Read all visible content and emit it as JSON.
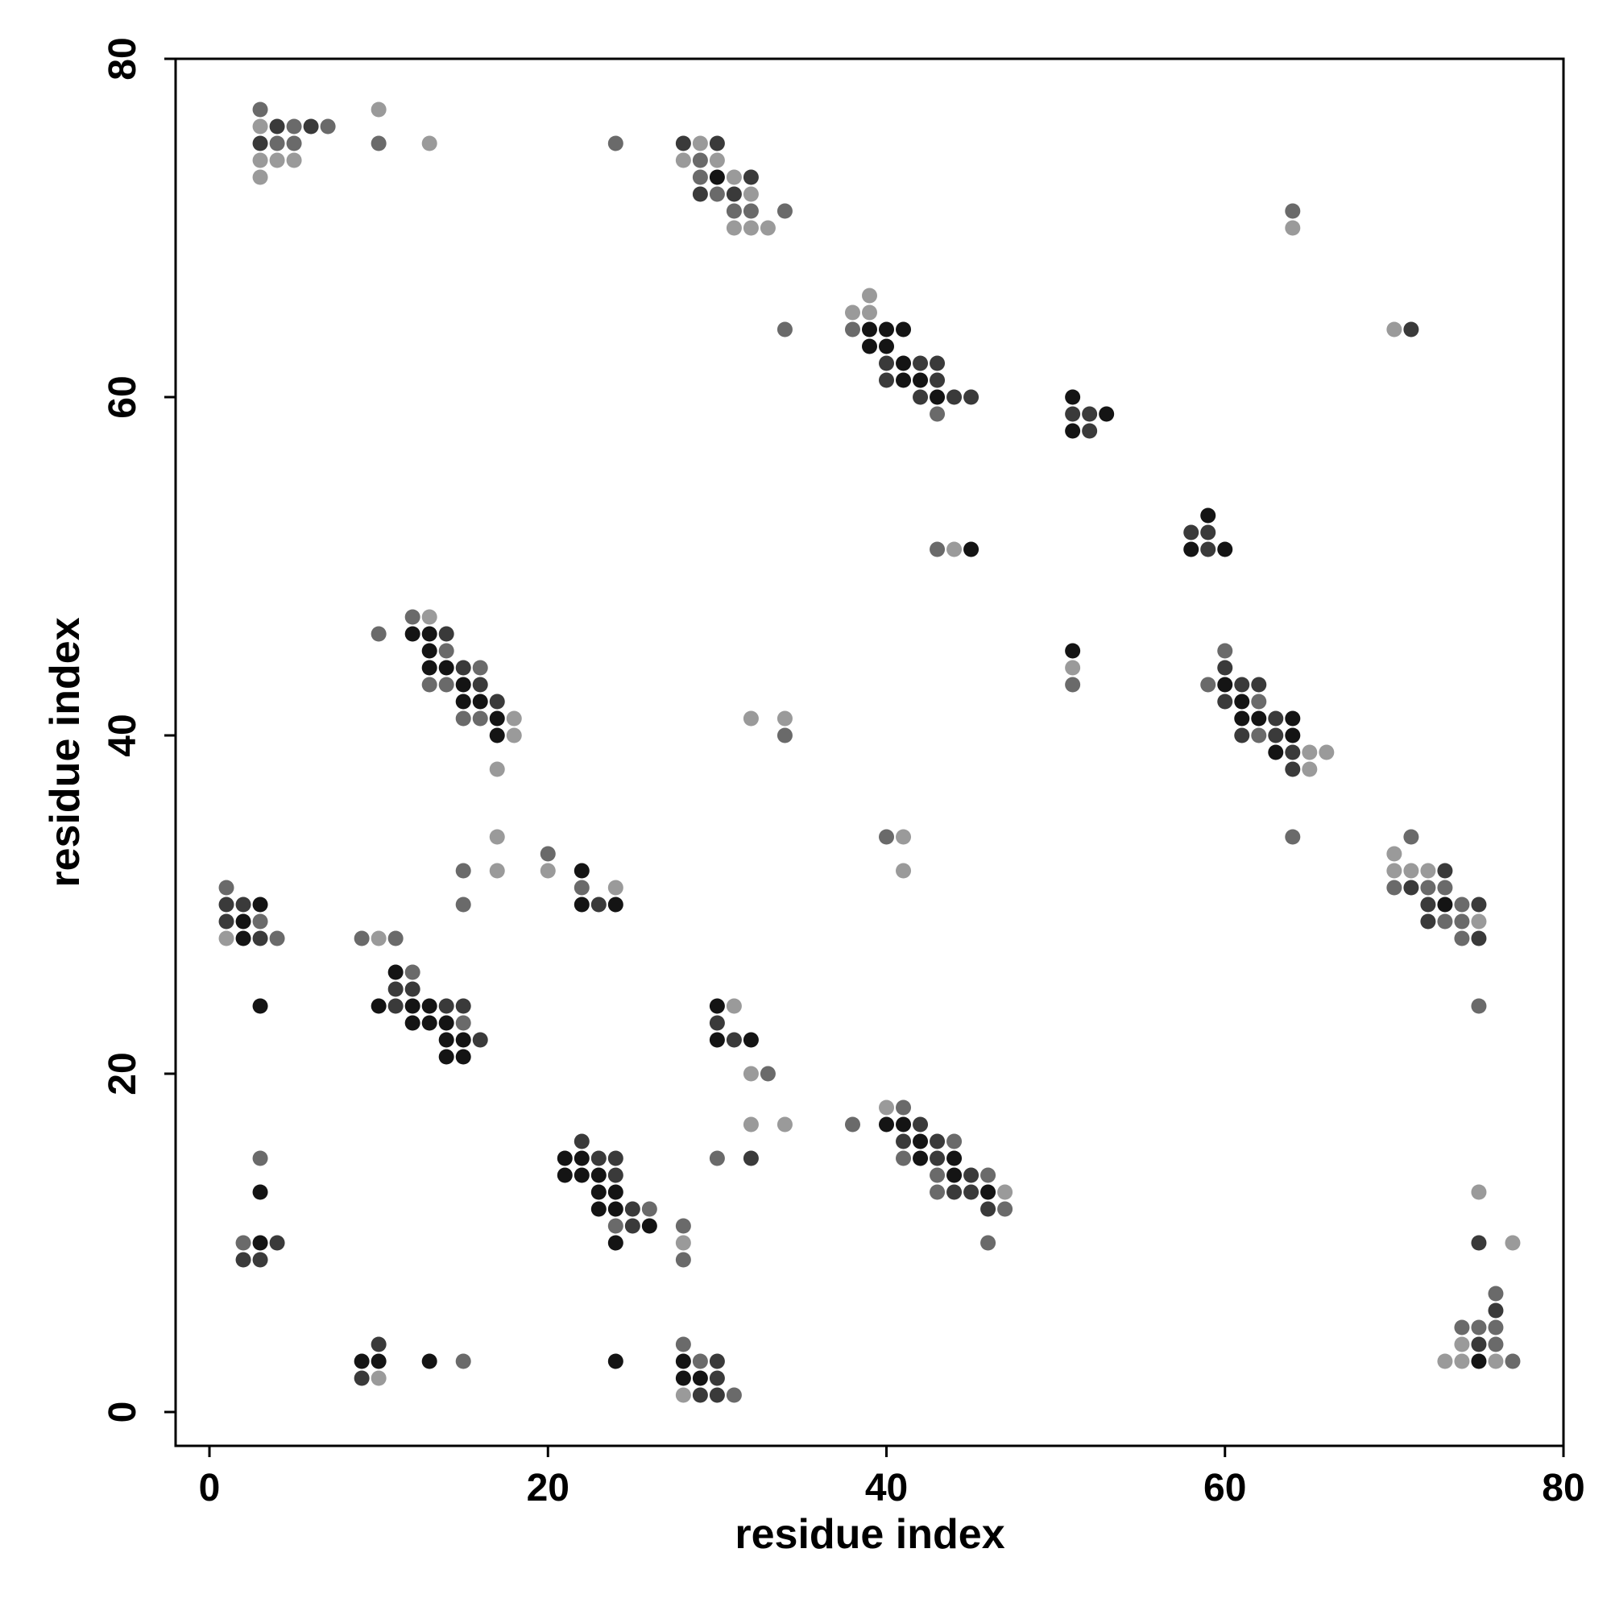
{
  "chart_data": {
    "type": "scatter",
    "x_label": "residue index",
    "y_label": "residue index",
    "xlim": [
      -2,
      80
    ],
    "ylim": [
      -2,
      80
    ],
    "xticks": [
      0,
      20,
      40,
      60,
      80
    ],
    "yticks": [
      0,
      20,
      40,
      60,
      80
    ],
    "series": [
      {
        "color": "#141414",
        "x": [
          30,
          39,
          40,
          41,
          39,
          40,
          41,
          41,
          42,
          43,
          51,
          53,
          51,
          59,
          58,
          60,
          45,
          12,
          13,
          13,
          13,
          14,
          15,
          15,
          16,
          17,
          17,
          51,
          60,
          61,
          61,
          62,
          64,
          64,
          63,
          22,
          22,
          24,
          3,
          2,
          2,
          3,
          73,
          11,
          10,
          12,
          13,
          12,
          13,
          14,
          14,
          15,
          14,
          15,
          30,
          30,
          32,
          40,
          41,
          42,
          42,
          44,
          44,
          46,
          21,
          22,
          21,
          22,
          23,
          23,
          24,
          23,
          24,
          26,
          24,
          3,
          3,
          9,
          10,
          13,
          24,
          28,
          28,
          29,
          75
        ],
        "y": [
          73,
          64,
          64,
          64,
          63,
          63,
          62,
          61,
          61,
          60,
          60,
          59,
          58,
          53,
          51,
          51,
          51,
          46,
          46,
          45,
          44,
          44,
          43,
          42,
          42,
          41,
          40,
          45,
          43,
          42,
          41,
          41,
          41,
          40,
          39,
          32,
          30,
          30,
          30,
          29,
          28,
          24,
          30,
          26,
          24,
          24,
          24,
          23,
          23,
          23,
          22,
          22,
          21,
          21,
          24,
          22,
          22,
          17,
          17,
          16,
          15,
          15,
          14,
          13,
          15,
          15,
          14,
          14,
          14,
          13,
          13,
          12,
          12,
          11,
          10,
          13,
          10,
          3,
          3,
          3,
          3,
          3,
          2,
          2,
          3
        ]
      },
      {
        "color": "#3a3a3a",
        "x": [
          4,
          6,
          3,
          28,
          30,
          32,
          29,
          31,
          40,
          42,
          43,
          40,
          43,
          42,
          44,
          45,
          71,
          51,
          52,
          52,
          58,
          59,
          59,
          14,
          15,
          16,
          17,
          61,
          62,
          60,
          60,
          63,
          61,
          63,
          64,
          64,
          23,
          1,
          2,
          1,
          3,
          73,
          71,
          72,
          75,
          72,
          75,
          11,
          12,
          11,
          14,
          15,
          16,
          30,
          31,
          32,
          42,
          41,
          43,
          43,
          45,
          44,
          45,
          46,
          22,
          23,
          24,
          24,
          25,
          25,
          4,
          2,
          3,
          75,
          10,
          9,
          30,
          30,
          29,
          30,
          76,
          75
        ],
        "y": [
          76,
          76,
          75,
          75,
          75,
          73,
          72,
          72,
          62,
          62,
          62,
          61,
          61,
          60,
          60,
          60,
          64,
          59,
          59,
          58,
          52,
          52,
          51,
          46,
          44,
          43,
          42,
          43,
          43,
          44,
          42,
          41,
          40,
          40,
          39,
          38,
          30,
          30,
          30,
          29,
          28,
          32,
          31,
          30,
          30,
          29,
          28,
          25,
          25,
          24,
          24,
          24,
          22,
          23,
          22,
          15,
          17,
          16,
          16,
          15,
          14,
          13,
          13,
          12,
          16,
          15,
          15,
          14,
          12,
          11,
          10,
          9,
          9,
          10,
          4,
          2,
          3,
          2,
          1,
          1,
          6,
          4
        ]
      },
      {
        "color": "#6a6a6a",
        "x": [
          3,
          5,
          7,
          4,
          5,
          10,
          24,
          29,
          29,
          30,
          31,
          32,
          34,
          64,
          34,
          38,
          43,
          43,
          12,
          10,
          14,
          13,
          14,
          16,
          15,
          16,
          34,
          51,
          60,
          59,
          62,
          62,
          64,
          15,
          15,
          40,
          20,
          22,
          1,
          3,
          4,
          71,
          70,
          72,
          73,
          74,
          73,
          74,
          74,
          75,
          9,
          11,
          12,
          15,
          33,
          38,
          30,
          41,
          44,
          41,
          43,
          46,
          43,
          47,
          46,
          26,
          24,
          28,
          28,
          3,
          2,
          15,
          28,
          29,
          31,
          76,
          74,
          75,
          76,
          76,
          77
        ],
        "y": [
          77,
          76,
          76,
          75,
          75,
          75,
          75,
          74,
          73,
          72,
          71,
          71,
          71,
          71,
          64,
          64,
          59,
          51,
          47,
          46,
          45,
          43,
          43,
          44,
          41,
          41,
          40,
          43,
          45,
          43,
          42,
          40,
          34,
          32,
          30,
          34,
          33,
          31,
          31,
          29,
          28,
          34,
          31,
          31,
          31,
          30,
          29,
          29,
          28,
          24,
          28,
          28,
          26,
          23,
          20,
          17,
          15,
          18,
          16,
          15,
          14,
          14,
          13,
          12,
          10,
          12,
          11,
          11,
          9,
          15,
          10,
          3,
          4,
          3,
          1,
          7,
          5,
          5,
          5,
          4,
          3
        ]
      },
      {
        "color": "#9a9a9a",
        "x": [
          3,
          3,
          4,
          5,
          3,
          10,
          13,
          29,
          28,
          30,
          31,
          32,
          31,
          32,
          33,
          64,
          39,
          38,
          39,
          70,
          44,
          13,
          18,
          18,
          17,
          32,
          34,
          51,
          65,
          66,
          65,
          17,
          17,
          41,
          41,
          20,
          24,
          1,
          70,
          70,
          71,
          72,
          75,
          10,
          31,
          32,
          32,
          34,
          40,
          47,
          28,
          75,
          77,
          10,
          28,
          74,
          73,
          74,
          76
        ],
        "y": [
          76,
          74,
          74,
          74,
          73,
          77,
          75,
          75,
          74,
          74,
          73,
          72,
          70,
          70,
          70,
          70,
          66,
          65,
          65,
          64,
          51,
          47,
          41,
          40,
          38,
          41,
          41,
          44,
          39,
          39,
          38,
          34,
          32,
          34,
          32,
          32,
          31,
          28,
          33,
          32,
          32,
          32,
          29,
          28,
          24,
          20,
          17,
          17,
          18,
          13,
          10,
          13,
          10,
          2,
          1,
          4,
          3,
          3,
          3
        ]
      }
    ]
  }
}
